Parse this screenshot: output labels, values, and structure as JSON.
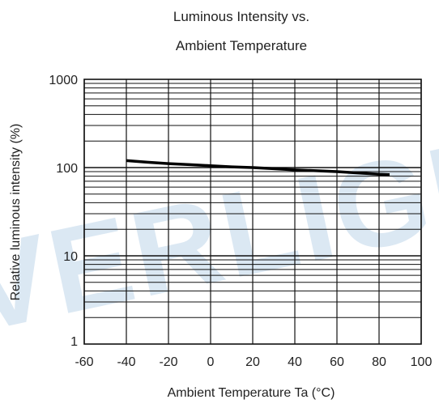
{
  "chart_data": {
    "type": "line",
    "title_line1": "Luminous Intensity vs.",
    "title_line2": "Ambient Temperature",
    "xlabel": "Ambient Temperature Ta (°C)",
    "ylabel": "Relative luminous intensity  (%)",
    "xscale": "linear",
    "yscale": "log",
    "xlim": [
      -60,
      100
    ],
    "ylim": [
      1,
      1000
    ],
    "grid": true,
    "x_ticks": [
      -60,
      -40,
      -20,
      0,
      20,
      40,
      60,
      80,
      100
    ],
    "x_tick_labels": [
      "-60",
      "-40",
      "-20",
      "0",
      "20",
      "40",
      "60",
      "80",
      "100"
    ],
    "y_ticks": [
      1,
      10,
      100,
      1000
    ],
    "y_tick_labels": [
      "1",
      "10",
      "100",
      "1000"
    ],
    "series": [
      {
        "x": [
          -40,
          -30,
          -20,
          -10,
          0,
          10,
          20,
          30,
          40,
          50,
          60,
          70,
          80,
          85
        ],
        "y": [
          120,
          115,
          111,
          108,
          105,
          102,
          100,
          97,
          94,
          92,
          90,
          87,
          84,
          83
        ]
      }
    ],
    "colors": {
      "grid": "#111111",
      "line": "#000000",
      "watermark": "#cfe0ef"
    },
    "watermark": "EVERLIGHT"
  }
}
